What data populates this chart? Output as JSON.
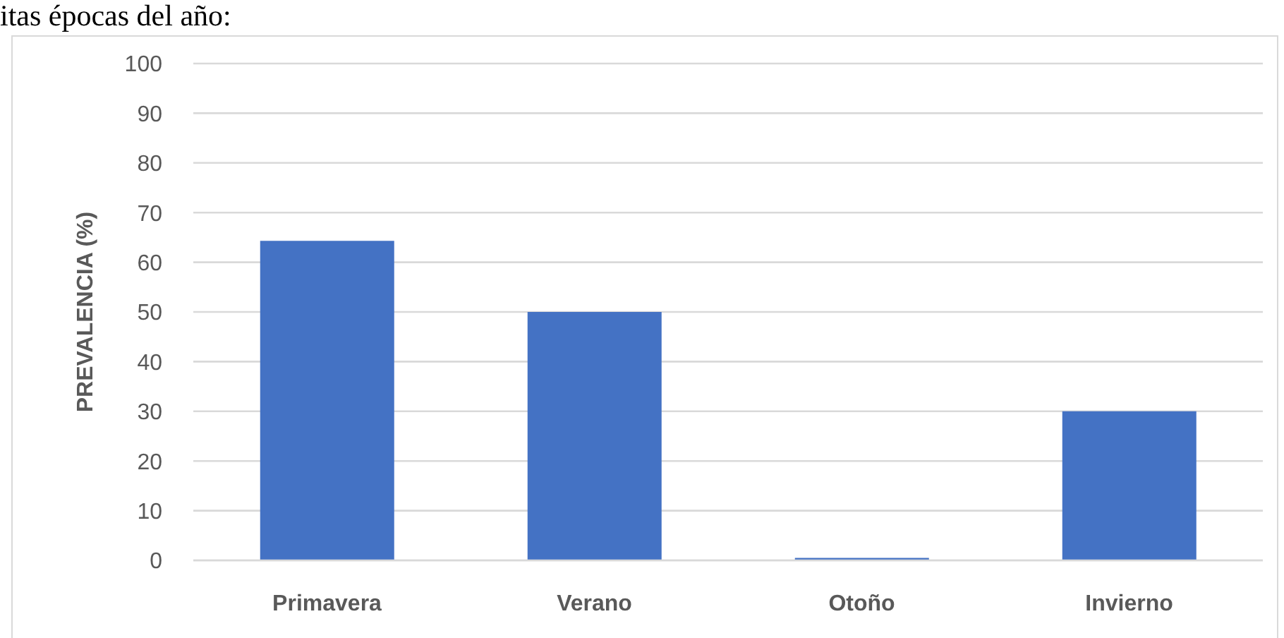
{
  "chart_data": {
    "type": "bar",
    "annotations": [
      "itas épocas del año:"
    ],
    "ylabel": "PREVALENCIA (%)",
    "categories": [
      "Primavera",
      "Verano",
      "Otoño",
      "Invierno"
    ],
    "series": [
      {
        "color": "#4472c4",
        "values": [
          64.3,
          50,
          0.5,
          30
        ]
      }
    ],
    "ylim": [
      0,
      100
    ],
    "yticks": [
      0,
      10,
      20,
      30,
      40,
      50,
      60,
      70,
      80,
      90,
      100
    ],
    "grid": "y"
  }
}
